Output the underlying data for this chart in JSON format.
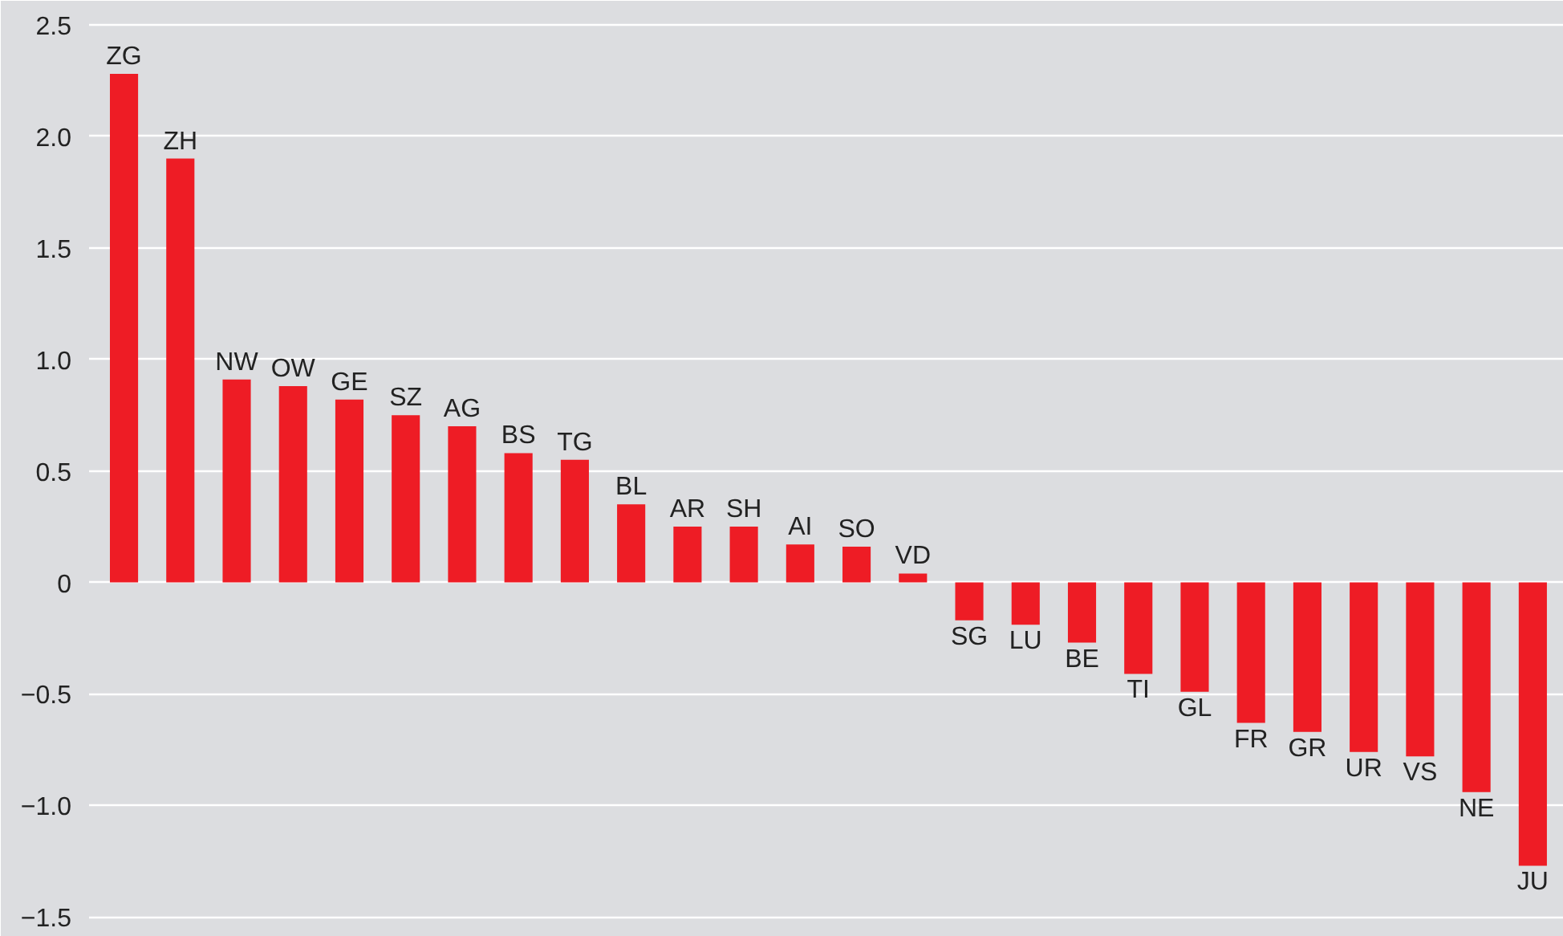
{
  "chart_data": {
    "type": "bar",
    "categories": [
      "ZG",
      "ZH",
      "NW",
      "OW",
      "GE",
      "SZ",
      "AG",
      "BS",
      "TG",
      "BL",
      "AR",
      "SH",
      "AI",
      "SO",
      "VD",
      "SG",
      "LU",
      "BE",
      "TI",
      "GL",
      "FR",
      "GR",
      "UR",
      "VS",
      "NE",
      "JU"
    ],
    "values": [
      2.28,
      1.9,
      0.91,
      0.88,
      0.82,
      0.75,
      0.7,
      0.58,
      0.55,
      0.35,
      0.25,
      0.25,
      0.17,
      0.16,
      0.04,
      -0.17,
      -0.19,
      -0.27,
      -0.41,
      -0.49,
      -0.63,
      -0.67,
      -0.76,
      -0.78,
      -0.94,
      -1.27
    ],
    "color": "#ee1c25",
    "ylim": [
      -1.56,
      2.55
    ],
    "yticks": [
      2.5,
      {
        "value": 2.0,
        "label": "2.0"
      },
      1.5,
      {
        "value": 1.0,
        "label": "1.0"
      },
      0.5,
      0,
      {
        "value": -0.5,
        "label": "−0.5"
      },
      {
        "value": -1.0,
        "label": "−1.0"
      },
      {
        "value": -1.5,
        "label": "−1.5"
      }
    ],
    "grid": "y",
    "tick_labels": "y"
  }
}
